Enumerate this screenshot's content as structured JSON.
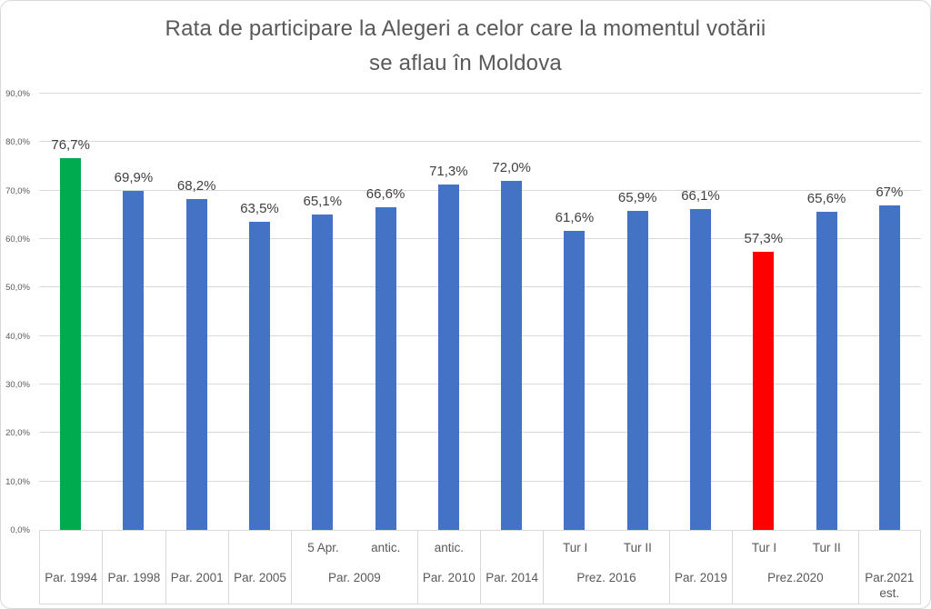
{
  "title": {
    "lines": [
      "Rata de participare la Alegeri a celor care la momentul votării",
      "se aflau în Moldova"
    ]
  },
  "colors": {
    "bar_default": "#4472C4",
    "bar_first": "#00AB4F",
    "bar_lowest": "#FF0000",
    "gridline": "#D9D9D9",
    "axis_text": "#595959",
    "data_label": "#404040",
    "title_text": "#595959"
  },
  "chart_data": {
    "type": "bar",
    "title": "Rata de participare la Alegeri a celor care la momentul votării se aflau în Moldova",
    "xlabel": "",
    "ylabel": "",
    "grid": true,
    "legend": false,
    "y_axis": {
      "min": 0,
      "max": 90,
      "step": 10,
      "tick_labels": [
        "0,0%",
        "10,0%",
        "20,0%",
        "30,0%",
        "40,0%",
        "50,0%",
        "60,0%",
        "70,0%",
        "80,0%",
        "90,0%"
      ]
    },
    "points": [
      {
        "category": "Par. 1994",
        "sub": "",
        "value": 76.7,
        "display": "76,7%",
        "color": "#00AB4F"
      },
      {
        "category": "Par. 1998",
        "sub": "",
        "value": 69.9,
        "display": "69,9%",
        "color": "#4472C4"
      },
      {
        "category": "Par. 2001",
        "sub": "",
        "value": 68.2,
        "display": "68,2%",
        "color": "#4472C4"
      },
      {
        "category": "Par. 2005",
        "sub": "",
        "value": 63.5,
        "display": "63,5%",
        "color": "#4472C4"
      },
      {
        "category": "Par. 2009",
        "sub": "5 Apr.",
        "value": 65.1,
        "display": "65,1%",
        "color": "#4472C4"
      },
      {
        "category": "Par. 2009",
        "sub": "antic.",
        "value": 66.6,
        "display": "66,6%",
        "color": "#4472C4"
      },
      {
        "category": "Par. 2010",
        "sub": "antic.",
        "value": 71.3,
        "display": "71,3%",
        "color": "#4472C4"
      },
      {
        "category": "Par. 2014",
        "sub": "",
        "value": 72.0,
        "display": "72,0%",
        "color": "#4472C4"
      },
      {
        "category": "Prez. 2016",
        "sub": "Tur I",
        "value": 61.6,
        "display": "61,6%",
        "color": "#4472C4"
      },
      {
        "category": "Prez. 2016",
        "sub": "Tur II",
        "value": 65.9,
        "display": "65,9%",
        "color": "#4472C4"
      },
      {
        "category": "Par. 2019",
        "sub": "",
        "value": 66.1,
        "display": "66,1%",
        "color": "#4472C4"
      },
      {
        "category": "Prez.2020",
        "sub": "Tur I",
        "value": 57.3,
        "display": "57,3%",
        "color": "#FF0000"
      },
      {
        "category": "Prez.2020",
        "sub": "Tur II",
        "value": 65.6,
        "display": "65,6%",
        "color": "#4472C4"
      },
      {
        "category": "Par.2021 est.",
        "sub": "",
        "value": 67,
        "display": "67%",
        "color": "#4472C4"
      }
    ],
    "groups": [
      {
        "label": "Par. 1994",
        "span": 1,
        "subs": []
      },
      {
        "label": "Par. 1998",
        "span": 1,
        "subs": []
      },
      {
        "label": "Par. 2001",
        "span": 1,
        "subs": []
      },
      {
        "label": "Par. 2005",
        "span": 1,
        "subs": []
      },
      {
        "label": "Par. 2009",
        "span": 2,
        "subs": [
          "5 Apr.",
          "antic."
        ]
      },
      {
        "label": "Par. 2010",
        "span": 1,
        "subs": [
          "antic."
        ]
      },
      {
        "label": "Par. 2014",
        "span": 1,
        "subs": []
      },
      {
        "label": "Prez. 2016",
        "span": 2,
        "subs": [
          "Tur I",
          "Tur II"
        ]
      },
      {
        "label": "Par. 2019",
        "span": 1,
        "subs": []
      },
      {
        "label": "Prez.2020",
        "span": 2,
        "subs": [
          "Tur I",
          "Tur II"
        ]
      },
      {
        "label": "Par.2021 est.",
        "span": 1,
        "subs": []
      }
    ]
  }
}
